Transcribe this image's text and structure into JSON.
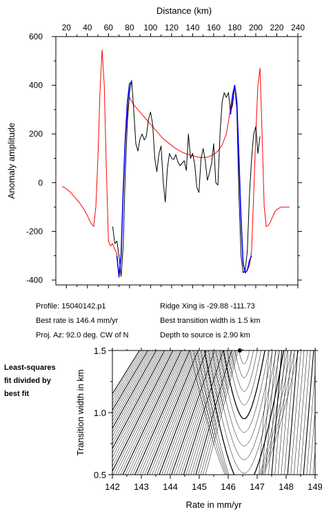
{
  "chart_data": [
    {
      "type": "line",
      "xlabel": "Distance (km)",
      "ylabel": "Anomaly amplitude",
      "xlim": [
        10,
        240
      ],
      "ylim": [
        -420,
        600
      ],
      "xticks": [
        20,
        40,
        60,
        80,
        100,
        120,
        140,
        160,
        180,
        200,
        220,
        240
      ],
      "yticks": [
        -400,
        -200,
        0,
        200,
        400,
        600
      ],
      "grid": false,
      "colors": {
        "observed": "#000000",
        "model": "#ff0000",
        "fitted": "#0000ff"
      },
      "series": [
        {
          "key": "observed",
          "x": [
            64,
            66,
            68,
            70,
            72,
            74,
            76,
            78,
            80,
            82,
            84,
            86,
            88,
            90,
            92,
            94,
            96,
            98,
            100,
            102,
            104,
            106,
            108,
            110,
            112,
            114,
            116,
            118,
            120,
            122,
            124,
            126,
            128,
            130,
            132,
            134,
            136,
            138,
            140,
            142,
            144,
            146,
            148,
            150,
            152,
            154,
            156,
            158,
            160,
            162,
            164,
            166,
            168,
            170,
            172,
            174,
            176,
            178,
            180,
            182,
            184,
            186,
            188,
            190,
            192,
            194,
            196,
            198,
            200,
            202,
            204
          ],
          "y": [
            -180,
            -250,
            -240,
            -300,
            -385,
            -260,
            40,
            250,
            370,
            420,
            300,
            160,
            130,
            180,
            200,
            175,
            190,
            260,
            290,
            240,
            100,
            45,
            120,
            150,
            5,
            -80,
            60,
            120,
            100,
            95,
            115,
            85,
            70,
            80,
            90,
            50,
            200,
            100,
            120,
            75,
            -20,
            -40,
            100,
            140,
            90,
            10,
            40,
            80,
            160,
            0,
            -10,
            200,
            330,
            370,
            350,
            370,
            290,
            320,
            400,
            300,
            -50,
            -300,
            -370,
            -360,
            -280,
            -50,
            100,
            200,
            230,
            120,
            190
          ]
        },
        {
          "key": "model",
          "x": [
            16,
            20,
            24,
            28,
            32,
            36,
            40,
            42,
            44,
            46,
            48,
            50,
            52,
            54,
            56,
            58,
            60,
            62,
            64,
            66,
            68,
            70,
            72,
            74,
            76,
            78,
            80,
            84,
            88,
            92,
            96,
            100,
            106,
            112,
            118,
            124,
            130,
            136,
            142,
            148,
            154,
            160,
            164,
            168,
            172,
            174,
            176,
            178,
            180,
            182,
            184,
            186,
            188,
            190,
            192,
            194,
            196,
            198,
            200,
            202,
            204,
            206,
            208,
            210,
            212,
            214,
            216,
            218,
            220,
            224,
            228,
            232
          ],
          "y": [
            -15,
            -25,
            -40,
            -60,
            -80,
            -105,
            -135,
            -155,
            -170,
            -180,
            -100,
            100,
            380,
            545,
            400,
            50,
            -240,
            -260,
            -250,
            -275,
            -290,
            -390,
            -310,
            -30,
            170,
            290,
            350,
            320,
            300,
            280,
            260,
            240,
            210,
            180,
            160,
            140,
            125,
            115,
            108,
            103,
            105,
            115,
            130,
            155,
            200,
            250,
            310,
            360,
            400,
            340,
            120,
            -150,
            -330,
            -370,
            -360,
            -340,
            -280,
            -50,
            200,
            400,
            470,
            200,
            -100,
            -180,
            -175,
            -160,
            -140,
            -120,
            -110,
            -100,
            -100,
            -100
          ]
        },
        {
          "key": "fitted",
          "x": [
            68,
            70,
            72,
            74,
            76,
            78,
            80,
            82
          ],
          "y": [
            -300,
            -385,
            -300,
            -30,
            180,
            330,
            405,
            415
          ]
        },
        {
          "key": "fitted2",
          "x": [
            176,
            178,
            180,
            182,
            184,
            186,
            188,
            190,
            192,
            194,
            196
          ],
          "y": [
            280,
            360,
            400,
            330,
            100,
            -150,
            -330,
            -370,
            -360,
            -320,
            -300
          ]
        }
      ]
    },
    {
      "type": "contour",
      "xlabel": "Rate in mm/yr",
      "ylabel": "Transition width in km",
      "xlim": [
        142,
        149
      ],
      "ylim": [
        0.5,
        1.5
      ],
      "xticks": [
        142,
        143,
        144,
        145,
        146,
        147,
        148,
        149
      ],
      "yticks": [
        0.5,
        1.0,
        1.5
      ],
      "best_fit_point": {
        "x": 146.4,
        "y": 1.5
      }
    }
  ],
  "info": {
    "profile": "Profile: 15040142.p1",
    "best_rate": "Best rate is 146.4 mm/yr",
    "proj_az": "Proj. Az: 92.0 deg. CW of N",
    "ridge_xing": "Ridge Xing is -29.88 -111.73",
    "best_width": "Best transition width is 1.5 km",
    "depth": "Depth to source is    2.90 km"
  },
  "side_label": {
    "line1": "Least-squares",
    "line2": "fit divided by",
    "line3": "best fit"
  }
}
